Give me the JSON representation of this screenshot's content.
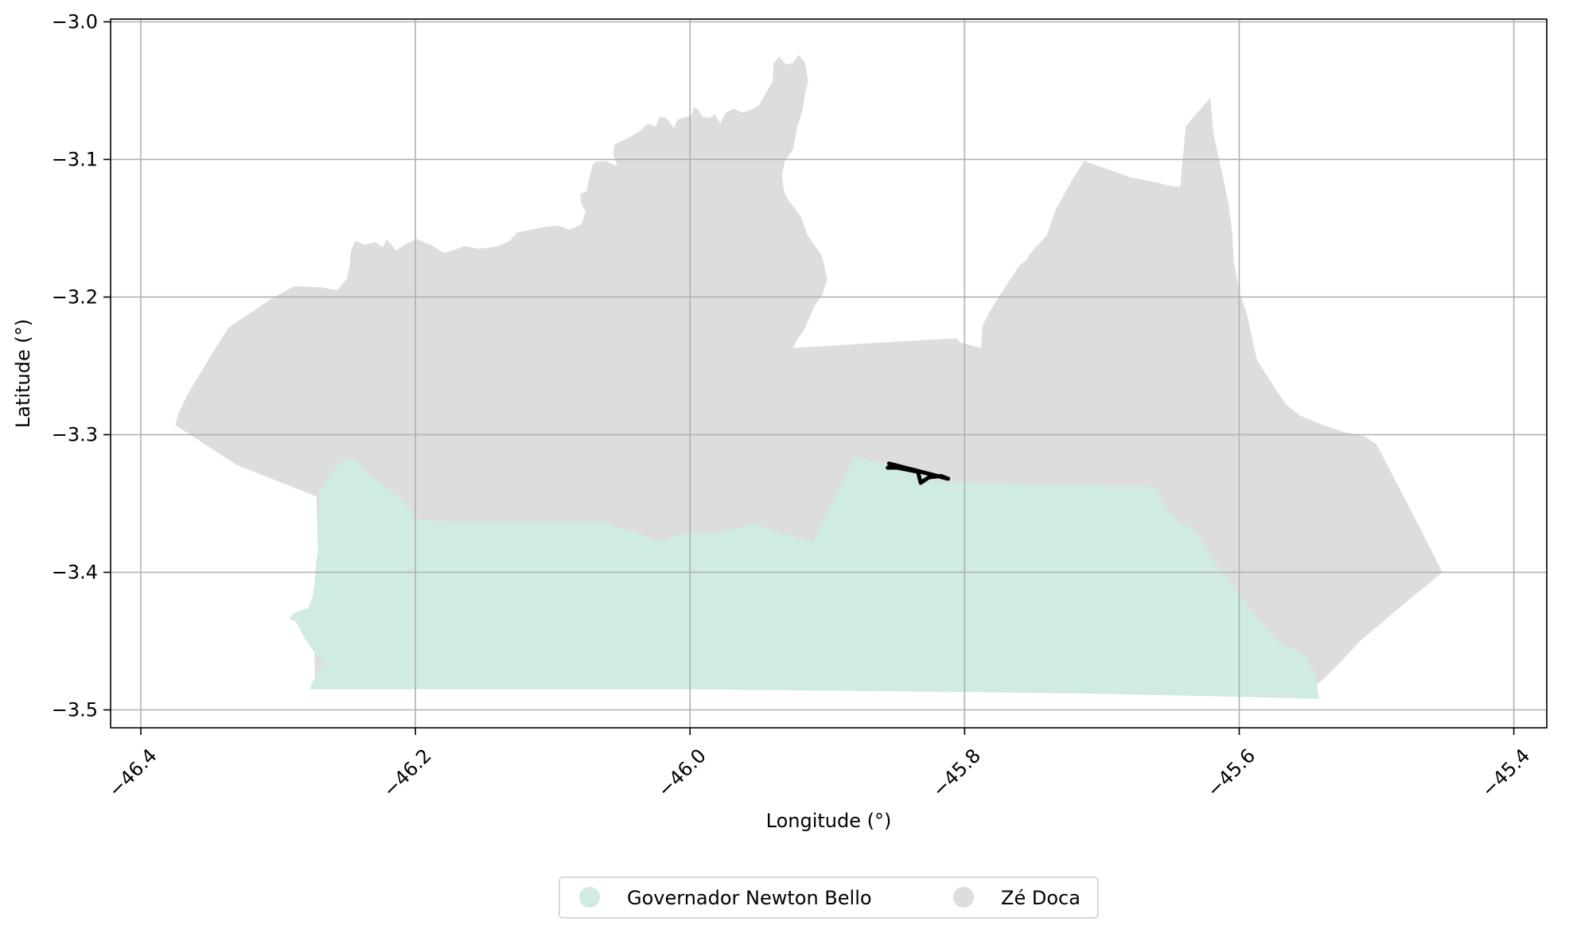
{
  "chart_data": {
    "type": "map",
    "xlabel": "Longitude (°)",
    "ylabel": "Latitude (°)",
    "xlim": [
      -46.422,
      -45.376
    ],
    "ylim": [
      -3.513,
      -2.998
    ],
    "grid": true,
    "x_ticks": [
      {
        "value": -46.4,
        "label": "−46.4"
      },
      {
        "value": -46.2,
        "label": "−46.2"
      },
      {
        "value": -46.0,
        "label": "−46.0"
      },
      {
        "value": -45.8,
        "label": "−45.8"
      },
      {
        "value": -45.6,
        "label": "−45.6"
      },
      {
        "value": -45.4,
        "label": "−45.4"
      }
    ],
    "y_ticks": [
      {
        "value": -3.0,
        "label": "−3.0"
      },
      {
        "value": -3.1,
        "label": "−3.1"
      },
      {
        "value": -3.2,
        "label": "−3.2"
      },
      {
        "value": -3.3,
        "label": "−3.3"
      },
      {
        "value": -3.4,
        "label": "−3.4"
      },
      {
        "value": -3.5,
        "label": "−3.5"
      }
    ],
    "regions": [
      {
        "name": "Zé Doca",
        "color": "#dddddd",
        "polygon": [
          [
            -46.375,
            -3.293
          ],
          [
            -46.372,
            -3.283
          ],
          [
            -46.365,
            -3.269
          ],
          [
            -46.348,
            -3.241
          ],
          [
            -46.336,
            -3.222
          ],
          [
            -46.303,
            -3.2
          ],
          [
            -46.288,
            -3.192
          ],
          [
            -46.268,
            -3.193
          ],
          [
            -46.257,
            -3.195
          ],
          [
            -46.25,
            -3.187
          ],
          [
            -46.248,
            -3.177
          ],
          [
            -46.247,
            -3.167
          ],
          [
            -46.244,
            -3.159
          ],
          [
            -46.237,
            -3.162
          ],
          [
            -46.229,
            -3.16
          ],
          [
            -46.224,
            -3.164
          ],
          [
            -46.221,
            -3.158
          ],
          [
            -46.214,
            -3.166
          ],
          [
            -46.208,
            -3.162
          ],
          [
            -46.199,
            -3.158
          ],
          [
            -46.189,
            -3.162
          ],
          [
            -46.179,
            -3.168
          ],
          [
            -46.164,
            -3.163
          ],
          [
            -46.154,
            -3.165
          ],
          [
            -46.14,
            -3.163
          ],
          [
            -46.131,
            -3.159
          ],
          [
            -46.126,
            -3.153
          ],
          [
            -46.106,
            -3.149
          ],
          [
            -46.096,
            -3.148
          ],
          [
            -46.088,
            -3.151
          ],
          [
            -46.079,
            -3.147
          ],
          [
            -46.076,
            -3.138
          ],
          [
            -46.079,
            -3.133
          ],
          [
            -46.08,
            -3.125
          ],
          [
            -46.075,
            -3.123
          ],
          [
            -46.074,
            -3.116
          ],
          [
            -46.071,
            -3.104
          ],
          [
            -46.069,
            -3.102
          ],
          [
            -46.061,
            -3.101
          ],
          [
            -46.053,
            -3.105
          ],
          [
            -46.056,
            -3.096
          ],
          [
            -46.055,
            -3.089
          ],
          [
            -46.046,
            -3.085
          ],
          [
            -46.036,
            -3.079
          ],
          [
            -46.031,
            -3.074
          ],
          [
            -46.025,
            -3.076
          ],
          [
            -46.022,
            -3.069
          ],
          [
            -46.017,
            -3.07
          ],
          [
            -46.012,
            -3.077
          ],
          [
            -46.009,
            -3.071
          ],
          [
            -45.999,
            -3.068
          ],
          [
            -45.997,
            -3.062
          ],
          [
            -45.994,
            -3.064
          ],
          [
            -45.991,
            -3.069
          ],
          [
            -45.986,
            -3.07
          ],
          [
            -45.982,
            -3.067
          ],
          [
            -45.978,
            -3.074
          ],
          [
            -45.974,
            -3.066
          ],
          [
            -45.968,
            -3.063
          ],
          [
            -45.962,
            -3.066
          ],
          [
            -45.956,
            -3.064
          ],
          [
            -45.95,
            -3.061
          ],
          [
            -45.945,
            -3.052
          ],
          [
            -45.94,
            -3.044
          ],
          [
            -45.939,
            -3.03
          ],
          [
            -45.935,
            -3.025
          ],
          [
            -45.93,
            -3.031
          ],
          [
            -45.925,
            -3.03
          ],
          [
            -45.921,
            -3.024
          ],
          [
            -45.916,
            -3.03
          ],
          [
            -45.914,
            -3.044
          ],
          [
            -45.916,
            -3.051
          ],
          [
            -45.918,
            -3.064
          ],
          [
            -45.922,
            -3.077
          ],
          [
            -45.925,
            -3.093
          ],
          [
            -45.931,
            -3.101
          ],
          [
            -45.933,
            -3.112
          ],
          [
            -45.932,
            -3.121
          ],
          [
            -45.93,
            -3.127
          ],
          [
            -45.925,
            -3.134
          ],
          [
            -45.919,
            -3.142
          ],
          [
            -45.915,
            -3.154
          ],
          [
            -45.904,
            -3.17
          ],
          [
            -45.9,
            -3.187
          ],
          [
            -45.904,
            -3.199
          ],
          [
            -45.909,
            -3.206
          ],
          [
            -45.913,
            -3.215
          ],
          [
            -45.917,
            -3.224
          ],
          [
            -45.922,
            -3.231
          ],
          [
            -45.925,
            -3.237
          ],
          [
            -45.842,
            -3.232
          ],
          [
            -45.806,
            -3.23
          ],
          [
            -45.803,
            -3.233
          ],
          [
            -45.792,
            -3.236
          ],
          [
            -45.788,
            -3.237
          ],
          [
            -45.787,
            -3.221
          ],
          [
            -45.782,
            -3.211
          ],
          [
            -45.776,
            -3.201
          ],
          [
            -45.768,
            -3.189
          ],
          [
            -45.76,
            -3.177
          ],
          [
            -45.755,
            -3.173
          ],
          [
            -45.752,
            -3.168
          ],
          [
            -45.74,
            -3.155
          ],
          [
            -45.734,
            -3.137
          ],
          [
            -45.72,
            -3.112
          ],
          [
            -45.713,
            -3.101
          ],
          [
            -45.679,
            -3.113
          ],
          [
            -45.659,
            -3.117
          ],
          [
            -45.652,
            -3.119
          ],
          [
            -45.643,
            -3.12
          ],
          [
            -45.639,
            -3.076
          ],
          [
            -45.621,
            -3.055
          ],
          [
            -45.619,
            -3.08
          ],
          [
            -45.608,
            -3.131
          ],
          [
            -45.605,
            -3.154
          ],
          [
            -45.604,
            -3.174
          ],
          [
            -45.6,
            -3.196
          ],
          [
            -45.594,
            -3.214
          ],
          [
            -45.587,
            -3.246
          ],
          [
            -45.574,
            -3.266
          ],
          [
            -45.566,
            -3.278
          ],
          [
            -45.556,
            -3.286
          ],
          [
            -45.539,
            -3.293
          ],
          [
            -45.524,
            -3.298
          ],
          [
            -45.509,
            -3.301
          ],
          [
            -45.5,
            -3.307
          ],
          [
            -45.476,
            -3.353
          ],
          [
            -45.452,
            -3.4
          ],
          [
            -45.485,
            -3.427
          ],
          [
            -45.512,
            -3.45
          ],
          [
            -45.526,
            -3.465
          ],
          [
            -45.538,
            -3.477
          ],
          [
            -45.552,
            -3.489
          ],
          [
            -45.6,
            -3.487
          ],
          [
            -45.7,
            -3.486
          ],
          [
            -45.8,
            -3.485
          ],
          [
            -45.9,
            -3.484
          ],
          [
            -46.0,
            -3.484
          ],
          [
            -46.1,
            -3.484
          ],
          [
            -46.2,
            -3.484
          ],
          [
            -46.273,
            -3.484
          ],
          [
            -46.274,
            -3.437
          ],
          [
            -46.273,
            -3.401
          ],
          [
            -46.271,
            -3.383
          ],
          [
            -46.272,
            -3.345
          ],
          [
            -46.33,
            -3.322
          ]
        ]
      },
      {
        "name": "Governador Newton Bello",
        "color": "#d0ebdf",
        "polygon": [
          [
            -46.27,
            -3.342
          ],
          [
            -46.26,
            -3.326
          ],
          [
            -46.252,
            -3.318
          ],
          [
            -46.245,
            -3.317
          ],
          [
            -46.241,
            -3.32
          ],
          [
            -46.238,
            -3.325
          ],
          [
            -46.227,
            -3.334
          ],
          [
            -46.21,
            -3.347
          ],
          [
            -46.198,
            -3.362
          ],
          [
            -46.175,
            -3.363
          ],
          [
            -46.1,
            -3.363
          ],
          [
            -46.06,
            -3.363
          ],
          [
            -46.053,
            -3.368
          ],
          [
            -46.04,
            -3.37
          ],
          [
            -46.03,
            -3.375
          ],
          [
            -46.02,
            -3.378
          ],
          [
            -46.007,
            -3.372
          ],
          [
            -45.99,
            -3.372
          ],
          [
            -45.975,
            -3.37
          ],
          [
            -45.952,
            -3.365
          ],
          [
            -45.935,
            -3.371
          ],
          [
            -45.91,
            -3.378
          ],
          [
            -45.88,
            -3.316
          ],
          [
            -45.86,
            -3.321
          ],
          [
            -45.82,
            -3.334
          ],
          [
            -45.76,
            -3.336
          ],
          [
            -45.7,
            -3.337
          ],
          [
            -45.66,
            -3.338
          ],
          [
            -45.655,
            -3.351
          ],
          [
            -45.645,
            -3.362
          ],
          [
            -45.632,
            -3.37
          ],
          [
            -45.62,
            -3.39
          ],
          [
            -45.6,
            -3.415
          ],
          [
            -45.588,
            -3.432
          ],
          [
            -45.572,
            -3.45
          ],
          [
            -45.552,
            -3.46
          ],
          [
            -45.544,
            -3.475
          ],
          [
            -45.542,
            -3.492
          ],
          [
            -45.62,
            -3.49
          ],
          [
            -45.72,
            -3.488
          ],
          [
            -45.8,
            -3.487
          ],
          [
            -45.9,
            -3.486
          ],
          [
            -46.0,
            -3.485
          ],
          [
            -46.1,
            -3.485
          ],
          [
            -46.2,
            -3.485
          ],
          [
            -46.277,
            -3.485
          ],
          [
            -46.275,
            -3.48
          ],
          [
            -46.271,
            -3.472
          ],
          [
            -46.266,
            -3.465
          ],
          [
            -46.273,
            -3.459
          ],
          [
            -46.28,
            -3.449
          ],
          [
            -46.287,
            -3.436
          ],
          [
            -46.292,
            -3.434
          ],
          [
            -46.289,
            -3.43
          ],
          [
            -46.278,
            -3.426
          ],
          [
            -46.275,
            -3.418
          ],
          [
            -46.273,
            -3.405
          ],
          [
            -46.271,
            -3.39
          ],
          [
            -46.271,
            -3.372
          ]
        ]
      }
    ],
    "line": {
      "color": "#000000",
      "points": [
        [
          -45.855,
          -3.321
        ],
        [
          -45.812,
          -3.332
        ],
        [
          -45.817,
          -3.33
        ],
        [
          -45.826,
          -3.331
        ],
        [
          -45.832,
          -3.335
        ],
        [
          -45.834,
          -3.327
        ],
        [
          -45.849,
          -3.324
        ],
        [
          -45.856,
          -3.324
        ]
      ]
    },
    "legend": {
      "placement": "bottom-center",
      "entries": [
        {
          "label": "Governador Newton Bello",
          "color": "#d0ebdf"
        },
        {
          "label": "Zé Doca",
          "color": "#dddddd"
        }
      ]
    }
  }
}
